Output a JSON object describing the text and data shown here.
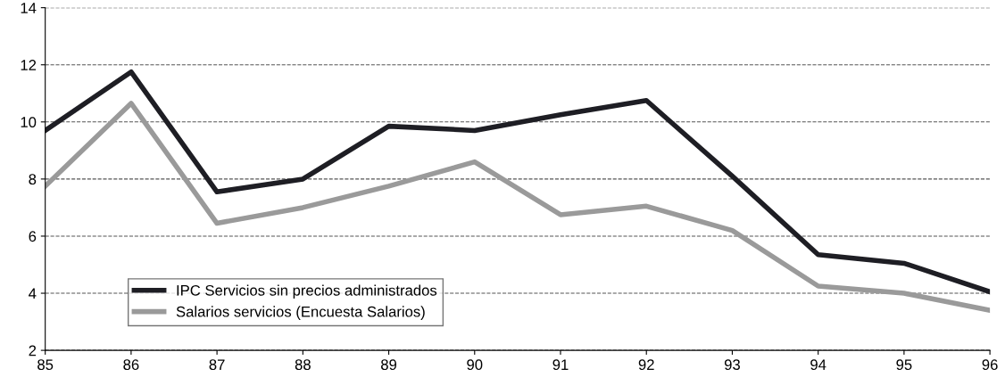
{
  "chart_data": {
    "type": "line",
    "x": [
      85,
      86,
      87,
      88,
      89,
      90,
      91,
      92,
      93,
      94,
      95,
      96
    ],
    "series": [
      {
        "name": "IPC Servicios sin precios administrados",
        "color": "#1e1e24",
        "values": [
          9.7,
          11.75,
          7.55,
          8.0,
          9.85,
          9.7,
          10.25,
          10.75,
          8.1,
          5.35,
          5.05,
          4.05
        ]
      },
      {
        "name": "Salarios servicios (Encuesta Salarios)",
        "color": "#9a9a9a",
        "values": [
          7.75,
          10.65,
          6.45,
          7.0,
          7.75,
          8.6,
          6.75,
          7.05,
          6.2,
          4.25,
          4.0,
          3.4
        ]
      }
    ],
    "xlim": [
      85,
      96
    ],
    "xticks": [
      85,
      86,
      87,
      88,
      89,
      90,
      91,
      92,
      93,
      94,
      95,
      96
    ],
    "ylim": [
      2,
      14
    ],
    "yticks": [
      2,
      4,
      6,
      8,
      10,
      12,
      14
    ],
    "grid": "y",
    "legend": "bottom left",
    "line_style": "solid",
    "marker": "none"
  }
}
